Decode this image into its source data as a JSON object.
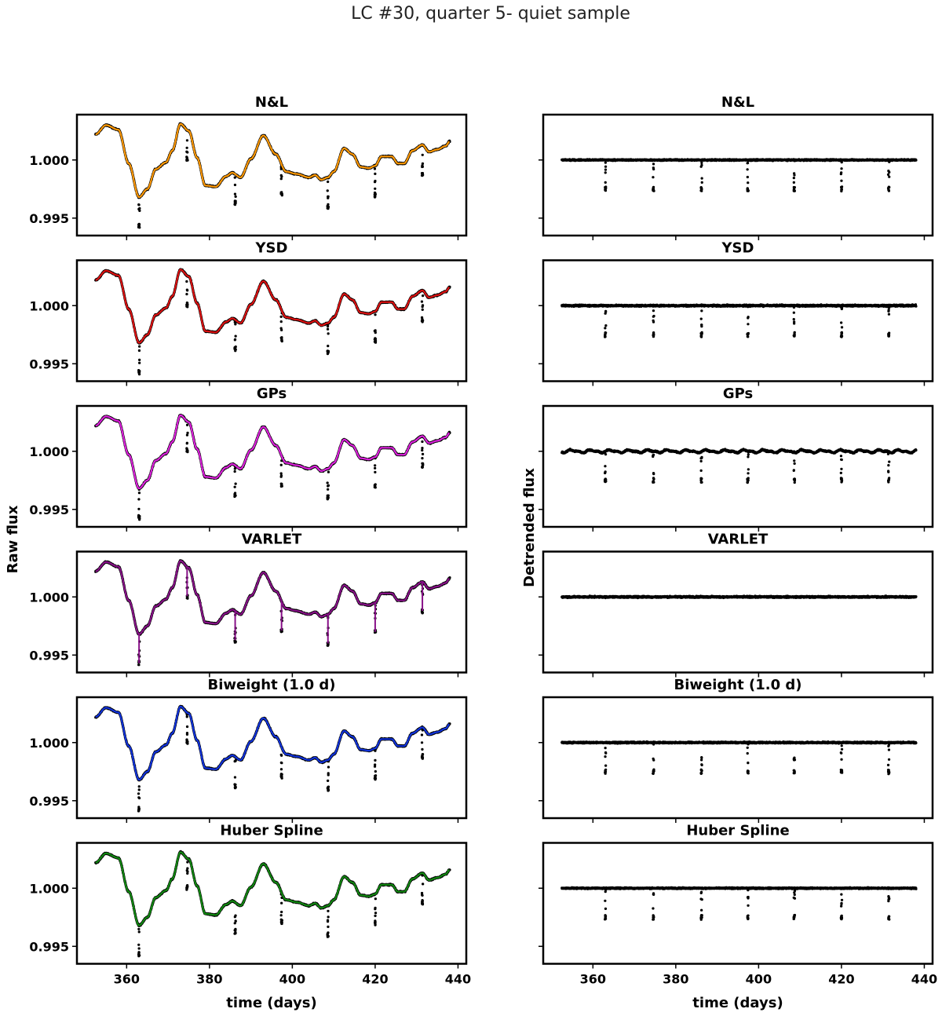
{
  "figure": {
    "suptitle": "LC #30, quarter 5- quiet sample",
    "ylabel_left": "Raw flux",
    "ylabel_right": "Detrended flux",
    "xlabel": "time (days)"
  },
  "chart_data": {
    "type": "scatter",
    "x_range": [
      352.5,
      438.0
    ],
    "xlim": [
      348,
      442
    ],
    "xticks": [
      360,
      380,
      400,
      420,
      440
    ],
    "transit_times": [
      363.0,
      374.6,
      386.2,
      397.4,
      408.6,
      420.0,
      431.4
    ],
    "transit_depth": 0.0025,
    "raw_flux_trend": {
      "x": [
        352.5,
        355,
        358,
        360.5,
        363,
        365,
        367,
        369.5,
        371,
        373,
        375,
        377,
        379,
        381.5,
        384,
        385.5,
        387.5,
        390,
        393,
        396,
        398.5,
        401,
        404,
        405.5,
        407,
        408.6,
        410,
        412.5,
        414.5,
        416.5,
        418.5,
        420,
        421.5,
        424,
        425.5,
        427,
        429,
        431.4,
        433,
        435,
        437,
        438
      ],
      "y": [
        1.0022,
        1.003,
        1.0026,
        0.9997,
        0.9968,
        0.9975,
        0.9992,
        0.9998,
        1.0008,
        1.0031,
        1.0025,
        1.0002,
        0.9978,
        0.9977,
        0.9986,
        0.9989,
        0.9985,
        1.0001,
        1.0021,
        1.0005,
        0.999,
        0.9988,
        0.9985,
        0.9987,
        0.9983,
        0.9985,
        0.999,
        1.001,
        1.0005,
        0.9994,
        0.9993,
        0.9995,
        1.0003,
        1.0003,
        0.9997,
        0.9997,
        1.0008,
        1.0013,
        1.0007,
        1.0009,
        1.0012,
        1.0016
      ]
    },
    "panels": [
      {
        "title": "N&L",
        "model_color": "#ff9900",
        "raw": {
          "ylim": [
            0.9935,
            1.0039
          ],
          "yticks": [
            0.995,
            1.0
          ],
          "ytick_labels": [
            "0.995",
            "1.000"
          ]
        },
        "detrended": {
          "ylim": [
            0.9935,
            1.0039
          ],
          "baseline": 1.0,
          "noise": 8e-05,
          "wiggle_amp": 0.0
        }
      },
      {
        "title": "YSD",
        "model_color": "#dd1111",
        "raw": {
          "ylim": [
            0.9935,
            1.0039
          ],
          "yticks": [
            0.995,
            1.0
          ],
          "ytick_labels": [
            "0.995",
            "1.000"
          ]
        },
        "detrended": {
          "ylim": [
            0.9935,
            1.0039
          ],
          "baseline": 1.0,
          "noise": 0.0001,
          "wiggle_amp": 0.0
        }
      },
      {
        "title": "GPs",
        "model_color": "#dd22dd",
        "raw": {
          "ylim": [
            0.9935,
            1.0039
          ],
          "yticks": [
            0.995,
            1.0
          ],
          "ytick_labels": [
            "0.995",
            "1.000"
          ]
        },
        "detrended": {
          "ylim": [
            0.9935,
            1.0039
          ],
          "baseline": 1.0,
          "noise": 9e-05,
          "wiggle_amp": 0.00018
        }
      },
      {
        "title": "VARLET",
        "model_color": "#881188",
        "raw": {
          "ylim": [
            0.9935,
            1.0039
          ],
          "yticks": [
            0.995,
            1.0
          ],
          "ytick_labels": [
            "0.995",
            "1.000"
          ],
          "follows_transits": true
        },
        "detrended": {
          "ylim": [
            0.9935,
            1.0039
          ],
          "baseline": 1.0,
          "noise": 0.0001,
          "wiggle_amp": 0.0,
          "no_transits": true
        }
      },
      {
        "title": "Biweight (1.0 d)",
        "model_color": "#1133dd",
        "raw": {
          "ylim": [
            0.9935,
            1.0039
          ],
          "yticks": [
            0.995,
            1.0
          ],
          "ytick_labels": [
            "0.995",
            "1.000"
          ]
        },
        "detrended": {
          "ylim": [
            0.9935,
            1.0039
          ],
          "baseline": 1.0,
          "noise": 9e-05,
          "wiggle_amp": 0.0
        }
      },
      {
        "title": "Huber Spline",
        "model_color": "#118811",
        "raw": {
          "ylim": [
            0.9935,
            1.0039
          ],
          "yticks": [
            0.995,
            1.0
          ],
          "ytick_labels": [
            "0.995",
            "1.000"
          ]
        },
        "detrended": {
          "ylim": [
            0.9935,
            1.0039
          ],
          "baseline": 1.0,
          "noise": 8e-05,
          "wiggle_amp": 0.0
        }
      }
    ]
  }
}
